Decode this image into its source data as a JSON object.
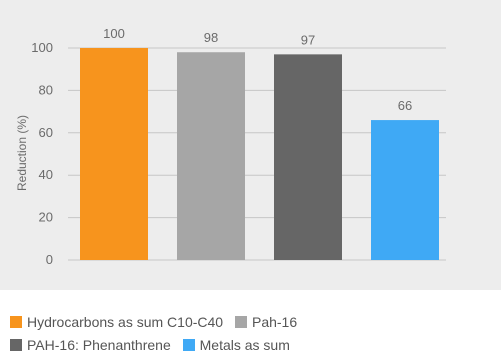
{
  "chart_data": {
    "type": "bar",
    "categories": [
      "Hydrocarbons as sum C10-C40",
      "Pah-16",
      "PAH-16: Phenanthrene",
      "Metals as sum"
    ],
    "values": [
      100,
      98,
      97,
      66
    ],
    "data_labels": [
      "100",
      "98",
      "97",
      "66"
    ],
    "colors": [
      "#f7941d",
      "#a6a6a6",
      "#666666",
      "#3fa9f5"
    ],
    "ylabel": "Reduction (%)",
    "ylim": [
      0,
      100
    ],
    "yticks": [
      "0",
      "20",
      "40",
      "60",
      "80",
      "100"
    ],
    "grid": true,
    "legend_position": "bottom",
    "legend": [
      {
        "name": "Hydrocarbons as sum C10-C40",
        "color": "#f7941d"
      },
      {
        "name": "Pah-16",
        "color": "#a6a6a6"
      },
      {
        "name": "PAH-16: Phenanthrene",
        "color": "#666666"
      },
      {
        "name": "Metals as sum",
        "color": "#3fa9f5"
      }
    ]
  }
}
